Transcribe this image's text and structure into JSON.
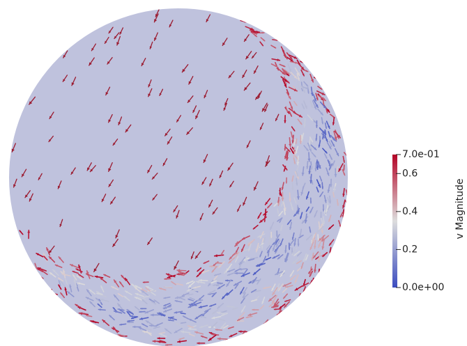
{
  "colorbar": {
    "title": "v Magnitude",
    "range": [
      0,
      0.7
    ],
    "ticks": [
      {
        "value": 0.7,
        "label": "7.0e-01"
      },
      0.6,
      0.4,
      0.2,
      {
        "value": 0,
        "label": "0.0e+00"
      }
    ],
    "colormap": [
      "#3b4cc0",
      "#dddddd",
      "#b40426"
    ]
  }
}
